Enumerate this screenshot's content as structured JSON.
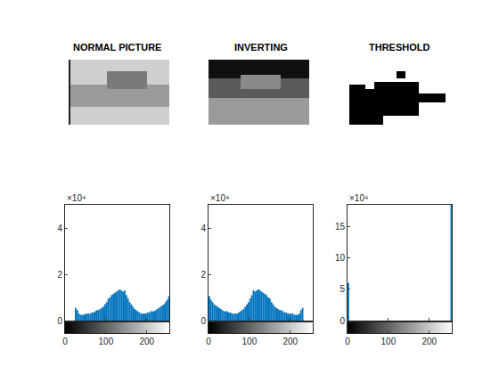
{
  "images": [
    {
      "title": "NORMAL PICTURE"
    },
    {
      "title": "INVERTING"
    },
    {
      "title": "THRESHOLD"
    }
  ],
  "chart_data": [
    {
      "type": "histogram",
      "annotations": [
        "×10⁴"
      ],
      "color": "#0072bd",
      "bins": [
        0,
        4,
        8,
        12,
        16,
        20,
        24,
        28,
        32,
        36,
        40,
        44,
        48,
        52,
        56,
        60,
        64,
        68,
        72,
        76,
        80,
        84,
        88,
        92,
        96,
        100,
        104,
        108,
        112,
        116,
        120,
        124,
        128,
        132,
        136,
        140,
        144,
        148,
        152,
        156,
        160,
        164,
        168,
        172,
        176,
        180,
        184,
        188,
        192,
        196,
        200,
        204,
        208,
        212,
        216,
        220,
        224,
        228,
        232,
        236,
        240,
        244,
        248,
        252,
        256
      ],
      "counts": [
        0,
        0,
        0,
        0,
        0,
        0,
        0.55,
        0.45,
        0.3,
        0.25,
        0.25,
        0.25,
        0.3,
        0.3,
        0.3,
        0.3,
        0.35,
        0.35,
        0.4,
        0.45,
        0.45,
        0.5,
        0.55,
        0.6,
        0.7,
        0.8,
        0.95,
        1.0,
        1.1,
        1.15,
        1.2,
        1.25,
        1.3,
        1.35,
        1.3,
        1.25,
        1.3,
        1.1,
        0.95,
        0.8,
        0.7,
        0.6,
        0.5,
        0.45,
        0.4,
        0.35,
        0.3,
        0.3,
        0.3,
        0.3,
        0.35,
        0.35,
        0.4,
        0.4,
        0.4,
        0.45,
        0.5,
        0.55,
        0.6,
        0.65,
        0.7,
        0.8,
        0.9,
        1.05
      ],
      "xlim": [
        0,
        255
      ],
      "xticks": [
        0,
        100,
        200
      ],
      "ylim": [
        0,
        5
      ],
      "yticks": [
        0,
        2,
        4
      ]
    },
    {
      "type": "histogram",
      "annotations": [
        "×10⁴"
      ],
      "color": "#0072bd",
      "bins": [
        0,
        4,
        8,
        12,
        16,
        20,
        24,
        28,
        32,
        36,
        40,
        44,
        48,
        52,
        56,
        60,
        64,
        68,
        72,
        76,
        80,
        84,
        88,
        92,
        96,
        100,
        104,
        108,
        112,
        116,
        120,
        124,
        128,
        132,
        136,
        140,
        144,
        148,
        152,
        156,
        160,
        164,
        168,
        172,
        176,
        180,
        184,
        188,
        192,
        196,
        200,
        204,
        208,
        212,
        216,
        220,
        224,
        228,
        232,
        236,
        240,
        244,
        248,
        252,
        256
      ],
      "counts": [
        1.05,
        0.9,
        0.8,
        0.7,
        0.65,
        0.6,
        0.55,
        0.5,
        0.45,
        0.4,
        0.4,
        0.4,
        0.35,
        0.35,
        0.3,
        0.3,
        0.3,
        0.3,
        0.35,
        0.4,
        0.45,
        0.5,
        0.6,
        0.7,
        0.8,
        0.95,
        1.1,
        1.3,
        1.25,
        1.3,
        1.35,
        1.3,
        1.25,
        1.2,
        1.15,
        1.1,
        1.0,
        0.95,
        0.8,
        0.7,
        0.6,
        0.55,
        0.5,
        0.45,
        0.45,
        0.4,
        0.35,
        0.35,
        0.3,
        0.3,
        0.3,
        0.3,
        0.25,
        0.25,
        0.25,
        0.3,
        0.45,
        0.55,
        0,
        0,
        0,
        0,
        0,
        0
      ],
      "xlim": [
        0,
        255
      ],
      "xticks": [
        0,
        100,
        200
      ],
      "ylim": [
        0,
        5
      ],
      "yticks": [
        0,
        2,
        4
      ]
    },
    {
      "type": "histogram",
      "annotations": [
        "×10⁴"
      ],
      "color": "#0072bd",
      "bins": [
        0,
        4,
        8,
        12,
        16,
        20,
        24,
        28,
        32,
        36,
        40,
        44,
        48,
        52,
        56,
        60,
        64,
        68,
        72,
        76,
        80,
        84,
        88,
        92,
        96,
        100,
        104,
        108,
        112,
        116,
        120,
        124,
        128,
        132,
        136,
        140,
        144,
        148,
        152,
        156,
        160,
        164,
        168,
        172,
        176,
        180,
        184,
        188,
        192,
        196,
        200,
        204,
        208,
        212,
        216,
        220,
        224,
        228,
        232,
        236,
        240,
        244,
        248,
        252,
        256
      ],
      "counts": [
        6,
        0,
        0,
        0,
        0,
        0,
        0,
        0,
        0,
        0,
        0,
        0,
        0,
        0,
        0,
        0,
        0,
        0,
        0,
        0,
        0,
        0,
        0,
        0,
        0,
        0,
        0,
        0,
        0,
        0,
        0,
        0,
        0,
        0,
        0,
        0,
        0,
        0,
        0,
        0,
        0,
        0,
        0,
        0,
        0,
        0,
        0,
        0,
        0,
        0,
        0,
        0,
        0,
        0,
        0,
        0,
        0,
        0,
        0,
        0,
        0,
        0,
        0,
        18.5
      ],
      "xlim": [
        0,
        255
      ],
      "xticks": [
        0,
        100,
        200
      ],
      "ylim": [
        0,
        18.5
      ],
      "yticks": [
        0,
        5,
        10,
        15
      ]
    }
  ]
}
